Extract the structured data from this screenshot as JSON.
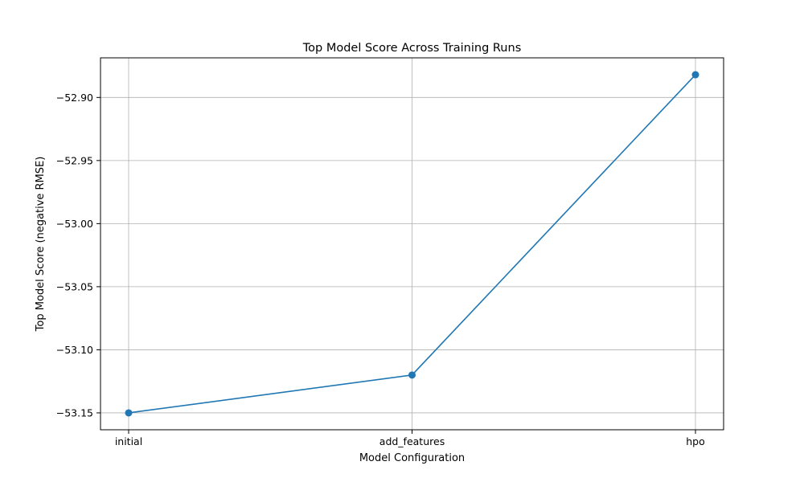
{
  "chart_data": {
    "type": "line",
    "title": "Top Model Score Across Training Runs",
    "xlabel": "Model Configuration",
    "ylabel": "Top Model Score (negative RMSE)",
    "categories": [
      "initial",
      "add_features",
      "hpo"
    ],
    "series": [
      {
        "values": [
          -53.15,
          -53.12,
          -52.882
        ],
        "color": "#1f77b4",
        "marker": "circle"
      }
    ],
    "y_ticks": [
      -53.15,
      -53.1,
      -53.05,
      -53.0,
      -52.95,
      -52.9
    ],
    "y_tick_labels": [
      "−53.15",
      "−53.10",
      "−53.05",
      "−53.00",
      "−52.95",
      "−52.90"
    ],
    "ylim": [
      -53.1634,
      -52.8686
    ],
    "grid": true,
    "legend": "none"
  }
}
